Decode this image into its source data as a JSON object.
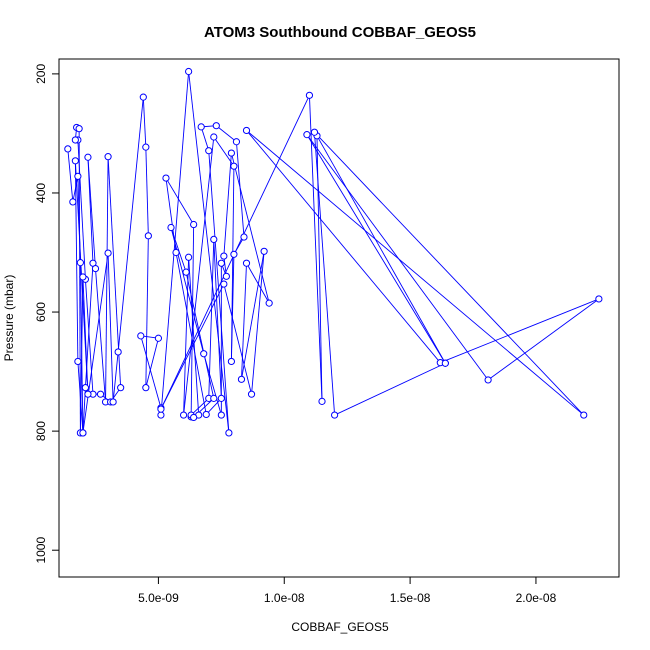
{
  "chart_data": {
    "type": "line",
    "title": "ATOM3 Southbound COBBAF_GEOS5",
    "xlabel": "COBBAF_GEOS5",
    "ylabel": "Pressure (mbar)",
    "xlim": [
      1.05e-09,
      2.33e-08
    ],
    "ylim": [
      1045,
      175
    ],
    "y_inverted": true,
    "grid": false,
    "legend": "none",
    "xticks": [
      {
        "value": 5e-09,
        "label": "5.0e-09"
      },
      {
        "value": 1e-08,
        "label": "1.0e-08"
      },
      {
        "value": 1.5e-08,
        "label": "1.5e-08"
      },
      {
        "value": 2e-08,
        "label": "2.0e-08"
      }
    ],
    "yticks": [
      {
        "value": 200,
        "label": "200"
      },
      {
        "value": 400,
        "label": "400"
      },
      {
        "value": 600,
        "label": "600"
      },
      {
        "value": 800,
        "label": "800"
      },
      {
        "value": 1000,
        "label": "1000"
      }
    ],
    "series": [
      {
        "color": "#0000ff",
        "marker": "open-circle",
        "points": [
          [
            1.4e-09,
            326
          ],
          [
            1.6e-09,
            415
          ],
          [
            1.8e-09,
            372
          ],
          [
            1.9e-09,
            517
          ],
          [
            2e-09,
            803
          ],
          [
            2.1e-09,
            727
          ],
          [
            2.4e-09,
            518
          ],
          [
            2.2e-09,
            340
          ],
          [
            2.5e-09,
            527
          ],
          [
            2.9e-09,
            751
          ],
          [
            3e-09,
            339
          ],
          [
            3.5e-09,
            727
          ],
          [
            3.1e-09,
            751
          ],
          [
            2.7e-09,
            738
          ],
          [
            2.4e-09,
            738
          ],
          [
            2.1e-09,
            545
          ],
          [
            1.8e-09,
            311
          ],
          [
            1.7e-09,
            311
          ],
          [
            1.75e-09,
            290
          ],
          [
            1.85e-09,
            292
          ],
          [
            1.9e-09,
            803
          ],
          [
            2e-09,
            541
          ],
          [
            2.2e-09,
            738
          ],
          [
            1.7e-09,
            346
          ],
          [
            1.8e-09,
            683
          ],
          [
            2e-09,
            803
          ],
          [
            3e-09,
            501
          ],
          [
            3.2e-09,
            751
          ],
          [
            3.4e-09,
            667
          ],
          [
            4.4e-09,
            239
          ],
          [
            4.5e-09,
            323
          ],
          [
            4.6e-09,
            472
          ],
          [
            4.5e-09,
            727
          ],
          [
            5e-09,
            644
          ],
          [
            4.3e-09,
            640
          ],
          [
            5.1e-09,
            761
          ],
          [
            5.1e-09,
            773
          ],
          [
            6.2e-09,
            196
          ],
          [
            7.8e-09,
            803
          ],
          [
            7e-09,
            329
          ],
          [
            6.7e-09,
            289
          ],
          [
            7.3e-09,
            287
          ],
          [
            8.1e-09,
            314
          ],
          [
            8.4e-09,
            474
          ],
          [
            8e-09,
            503
          ],
          [
            7.9e-09,
            683
          ],
          [
            8e-09,
            355
          ],
          [
            7.2e-09,
            306
          ],
          [
            6e-09,
            773
          ],
          [
            6.2e-09,
            508
          ],
          [
            6.6e-09,
            773
          ],
          [
            6.3e-09,
            776
          ],
          [
            6.4e-09,
            453
          ],
          [
            5.3e-09,
            375
          ],
          [
            5.7e-09,
            500
          ],
          [
            6.9e-09,
            772
          ],
          [
            7.5e-09,
            745
          ],
          [
            7.2e-09,
            478
          ],
          [
            7e-09,
            745
          ],
          [
            6.3e-09,
            773
          ],
          [
            6.4e-09,
            777
          ],
          [
            7.2e-09,
            745
          ],
          [
            6.1e-09,
            533
          ],
          [
            5.5e-09,
            458
          ],
          [
            6.8e-09,
            670
          ],
          [
            7.5e-09,
            773
          ],
          [
            7.5e-09,
            518
          ],
          [
            7.7e-09,
            540
          ],
          [
            7.6e-09,
            506
          ],
          [
            7.9e-09,
            333
          ],
          [
            9.4e-09,
            585
          ],
          [
            8.5e-09,
            518
          ],
          [
            8.3e-09,
            713
          ],
          [
            9.2e-09,
            498
          ],
          [
            8.7e-09,
            738
          ],
          [
            7.6e-09,
            553
          ],
          [
            5.1e-09,
            763
          ],
          [
            1.1e-08,
            236
          ],
          [
            1.15e-08,
            750
          ],
          [
            1.13e-08,
            304
          ],
          [
            1.64e-08,
            686
          ],
          [
            1.2e-08,
            773
          ],
          [
            1.12e-08,
            298
          ],
          [
            2.19e-08,
            773
          ],
          [
            8.5e-09,
            295
          ],
          [
            1.62e-08,
            685
          ],
          [
            2.25e-08,
            578
          ],
          [
            1.81e-08,
            714
          ],
          [
            1.09e-08,
            302
          ],
          [
            1.64e-08,
            686
          ]
        ]
      }
    ]
  }
}
